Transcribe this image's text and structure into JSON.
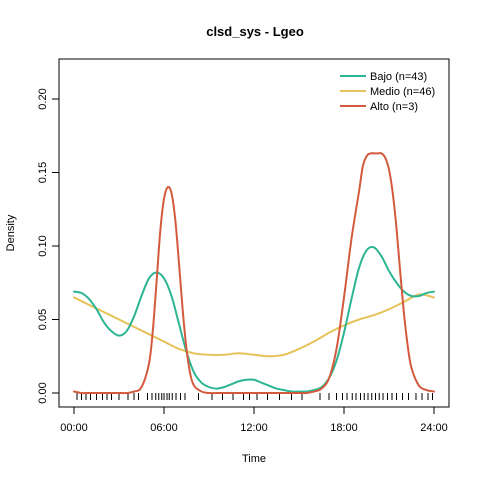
{
  "chart_data": {
    "type": "line",
    "title": "clsd_sys - Lgeo",
    "xlabel": "Time",
    "ylabel": "Density",
    "xlim": [
      0,
      24
    ],
    "ylim": [
      0,
      0.225
    ],
    "x_ticks": [
      0,
      6,
      12,
      18,
      24
    ],
    "x_tick_labels": [
      "00:00",
      "06:00",
      "12:00",
      "18:00",
      "24:00"
    ],
    "y_ticks": [
      0.0,
      0.05,
      0.1,
      0.15,
      0.2
    ],
    "y_tick_labels": [
      "0.00",
      "0.05",
      "0.10",
      "0.15",
      "0.20"
    ],
    "legend_position": "top-right",
    "grid": false,
    "series": [
      {
        "name": "Bajo (n=43)",
        "color": "#2db593",
        "x": [
          0,
          0.5,
          1,
          1.5,
          2,
          2.5,
          3,
          3.5,
          4,
          4.5,
          5,
          5.5,
          6,
          6.5,
          7,
          7.5,
          8,
          8.5,
          9,
          9.5,
          10,
          10.5,
          11,
          11.5,
          12,
          12.5,
          13,
          13.5,
          14,
          14.5,
          15,
          15.5,
          16,
          16.5,
          17,
          17.5,
          18,
          18.5,
          19,
          19.5,
          20,
          20.5,
          21,
          21.5,
          22,
          22.5,
          23,
          23.5,
          24
        ],
        "y": [
          0.069,
          0.068,
          0.064,
          0.057,
          0.048,
          0.042,
          0.039,
          0.042,
          0.052,
          0.066,
          0.078,
          0.082,
          0.078,
          0.066,
          0.047,
          0.028,
          0.014,
          0.007,
          0.004,
          0.003,
          0.004,
          0.006,
          0.008,
          0.009,
          0.009,
          0.007,
          0.005,
          0.003,
          0.002,
          0.001,
          0.001,
          0.001,
          0.002,
          0.004,
          0.01,
          0.022,
          0.041,
          0.064,
          0.085,
          0.097,
          0.099,
          0.093,
          0.083,
          0.075,
          0.069,
          0.066,
          0.066,
          0.068,
          0.069
        ]
      },
      {
        "name": "Medio (n=46)",
        "color": "#e7c25a",
        "x": [
          0,
          1,
          2,
          3,
          4,
          5,
          6,
          7,
          8,
          9,
          10,
          11,
          12,
          13,
          14,
          15,
          16,
          17,
          18,
          19,
          20,
          21,
          22,
          23,
          24
        ],
        "y": [
          0.065,
          0.06,
          0.055,
          0.05,
          0.045,
          0.04,
          0.035,
          0.03,
          0.027,
          0.026,
          0.026,
          0.027,
          0.026,
          0.025,
          0.026,
          0.03,
          0.035,
          0.041,
          0.046,
          0.05,
          0.053,
          0.057,
          0.062,
          0.067,
          0.065
        ]
      },
      {
        "name": "Alto (n=3)",
        "color": "#d35a3c",
        "x": [
          0,
          0.5,
          1,
          1.5,
          2,
          2.5,
          3,
          3.5,
          4,
          4.5,
          5,
          5.25,
          5.5,
          5.75,
          6,
          6.25,
          6.5,
          6.75,
          7,
          7.25,
          7.5,
          7.75,
          8,
          8.5,
          9,
          10,
          11,
          12,
          13,
          14,
          15,
          15.5,
          16,
          16.5,
          17,
          17.5,
          18,
          18.5,
          19,
          19.25,
          19.5,
          19.75,
          20,
          20.25,
          20.5,
          20.75,
          21,
          21.25,
          21.5,
          21.75,
          22,
          22.25,
          22.5,
          23,
          23.5,
          24
        ],
        "y": [
          0.001,
          0.0,
          0.0,
          0.0,
          0.0,
          0.0,
          0.0,
          0.0,
          0.001,
          0.004,
          0.02,
          0.042,
          0.075,
          0.11,
          0.132,
          0.14,
          0.136,
          0.118,
          0.088,
          0.056,
          0.03,
          0.013,
          0.005,
          0.001,
          0.0,
          0.0,
          0.0,
          0.0,
          0.0,
          0.0,
          0.0,
          0.0,
          0.001,
          0.003,
          0.01,
          0.03,
          0.065,
          0.105,
          0.137,
          0.154,
          0.161,
          0.163,
          0.163,
          0.163,
          0.163,
          0.16,
          0.152,
          0.136,
          0.112,
          0.082,
          0.054,
          0.032,
          0.017,
          0.005,
          0.002,
          0.001
        ]
      }
    ],
    "rug_x": [
      0.2,
      0.5,
      0.8,
      1.1,
      1.5,
      1.9,
      2.2,
      2.5,
      3.0,
      3.6,
      4.0,
      4.3,
      4.9,
      5.2,
      5.45,
      5.65,
      5.85,
      6.0,
      6.2,
      6.35,
      6.55,
      6.8,
      7.1,
      7.4,
      8.3,
      9.2,
      9.9,
      10.6,
      11.3,
      11.7,
      12.2,
      12.9,
      13.7,
      14.5,
      15.2,
      16.4,
      17.0,
      17.5,
      17.9,
      18.2,
      18.55,
      18.8,
      19.1,
      19.35,
      19.6,
      19.85,
      20.1,
      20.35,
      20.6,
      20.9,
      21.2,
      21.5,
      21.9,
      22.3,
      22.8,
      23.2,
      23.6,
      23.9
    ]
  }
}
